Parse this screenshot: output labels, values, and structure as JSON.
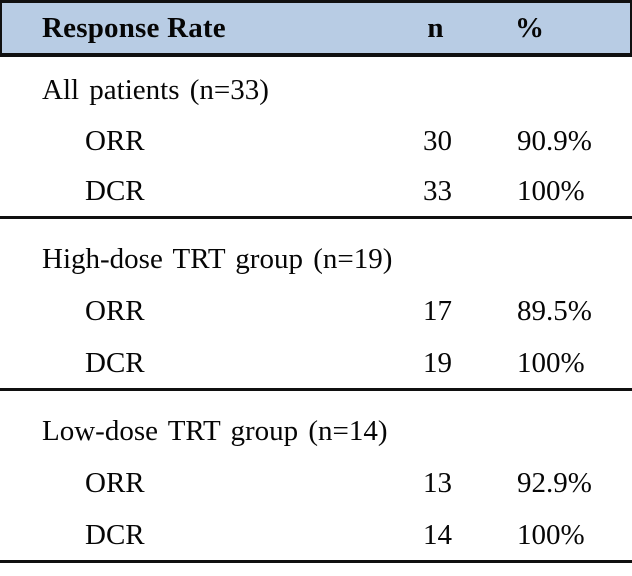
{
  "colors": {
    "header_bg": "#b8cce4",
    "border": "#101010",
    "text": "#060606"
  },
  "table": {
    "header": {
      "response_rate": "Response Rate",
      "n": "n",
      "percent": "%"
    },
    "sections": [
      {
        "label": "All patients (n=33)",
        "rows": [
          {
            "label": "ORR",
            "n": "30",
            "pct": "90.9%"
          },
          {
            "label": "DCR",
            "n": "33",
            "pct": "100%"
          }
        ]
      },
      {
        "label": "High-dose TRT group (n=19)",
        "rows": [
          {
            "label": "ORR",
            "n": "17",
            "pct": "89.5%"
          },
          {
            "label": "DCR",
            "n": "19",
            "pct": "100%"
          }
        ]
      },
      {
        "label": "Low-dose TRT group (n=14)",
        "rows": [
          {
            "label": "ORR",
            "n": "13",
            "pct": "92.9%"
          },
          {
            "label": "DCR",
            "n": "14",
            "pct": "100%"
          }
        ]
      }
    ]
  }
}
